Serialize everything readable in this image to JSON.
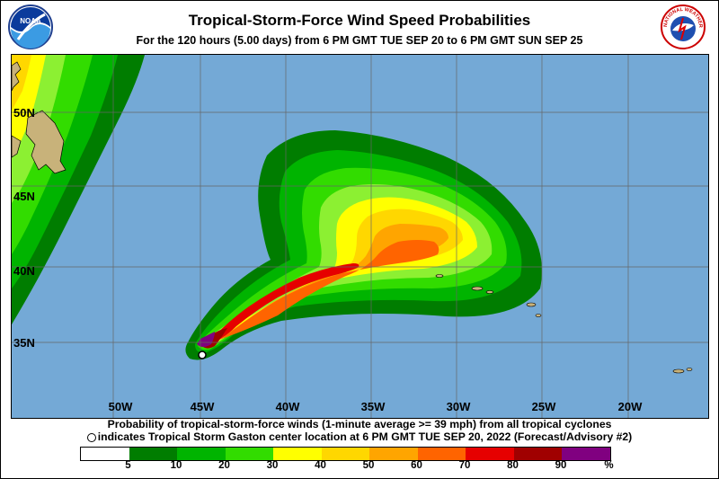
{
  "header": {
    "title": "Tropical-Storm-Force Wind Speed Probabilities",
    "subtitle": "For the 120 hours (5.00 days) from 6 PM GMT TUE SEP 20 to 6 PM GMT SUN SEP 25",
    "left_logo_text": "NOAA",
    "right_logo_text": "NATIONAL WEATHER SERVICE"
  },
  "map": {
    "lat_labels": [
      "50N",
      "45N",
      "40N",
      "35N"
    ],
    "lon_labels": [
      "50W",
      "45W",
      "40W",
      "35W",
      "30W",
      "25W",
      "20W"
    ],
    "ocean_color": "#74a9d6",
    "land_color": "#c8b27a"
  },
  "footer": {
    "line1": "Probability of tropical-storm-force winds (1-minute average >= 39 mph) from all tropical cyclones",
    "line2": "indicates Tropical Storm Gaston center location at 6 PM GMT TUE SEP 20, 2022 (Forecast/Advisory #2)"
  },
  "legend": {
    "colors": [
      "#ffffff",
      "#007d00",
      "#00b400",
      "#32dc00",
      "#8cf032",
      "#ffff00",
      "#ffd700",
      "#ffa500",
      "#ff6400",
      "#e60000",
      "#a00000",
      "#800080"
    ],
    "labels": [
      "5",
      "10",
      "20",
      "30",
      "40",
      "50",
      "60",
      "70",
      "80",
      "90",
      "%"
    ]
  }
}
